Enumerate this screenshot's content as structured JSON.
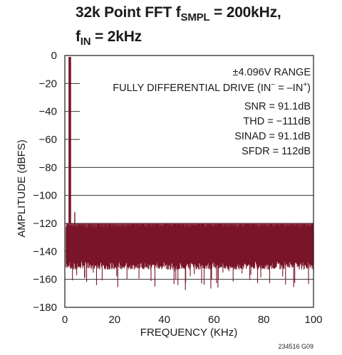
{
  "chart_data": {
    "type": "line",
    "title_parts": {
      "line1_text": "32k Point FFT f",
      "line1_sub": "SMPL",
      "line1_rest": " = 200kHz,",
      "line2_text": "f",
      "line2_sub": "IN",
      "line2_rest": " = 2kHz"
    },
    "xlabel": "FREQUENCY (KHz)",
    "ylabel": "AMPLITUDE (dBFS)",
    "xlim": [
      0,
      100
    ],
    "ylim": [
      -180,
      0
    ],
    "x_ticks": [
      "0",
      "20",
      "40",
      "60",
      "80",
      "100"
    ],
    "y_ticks": [
      "0",
      "−20",
      "−40",
      "−60",
      "−80",
      "−100",
      "−120",
      "−140",
      "−160",
      "−180"
    ],
    "grid": "horizontal",
    "series_color": "#7a1428",
    "fundamental": {
      "x": 2,
      "y": -1
    },
    "harmonics": [
      {
        "x": 4,
        "y": -112
      }
    ],
    "noise_floor": {
      "top": -120,
      "bottom": -150,
      "typical": -135,
      "occasional_min": -172
    },
    "annotations": {
      "range": "±4.096V RANGE",
      "drive_prefix": "FULLY DIFFERENTIAL DRIVE (IN",
      "drive_mid": " = –IN",
      "drive_suffix": ")",
      "sup_minus": "−",
      "sup_plus": "+",
      "snr": "SNR = 91.1dB",
      "thd": "THD = −111dB",
      "sinad": "SINAD = 91.1dB",
      "sfdr": "SFDR = 112dB"
    }
  },
  "footnote": "234516 G09"
}
